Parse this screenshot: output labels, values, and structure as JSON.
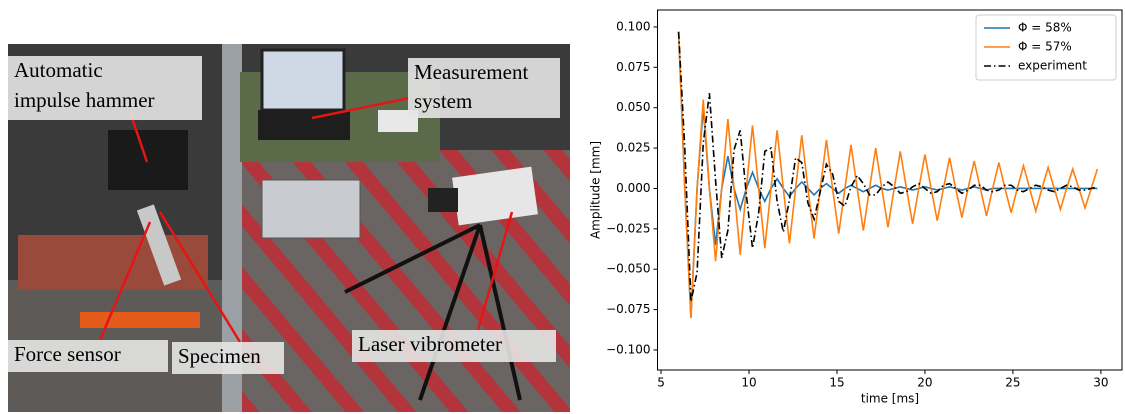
{
  "photo": {
    "labels": [
      {
        "lines": [
          "Automatic",
          "impulse hammer"
        ]
      },
      {
        "lines": [
          "Measurement",
          "system"
        ]
      },
      {
        "lines": [
          "Force sensor"
        ]
      },
      {
        "lines": [
          "Specimen"
        ]
      },
      {
        "lines": [
          "Laser vibrometer"
        ]
      }
    ]
  },
  "chart_data": {
    "type": "line",
    "xlabel": "time [ms]",
    "ylabel": "Amplitude [mm]",
    "xlim": [
      4.8,
      31.2
    ],
    "ylim": [
      -0.1124,
      0.1105
    ],
    "xticks": [
      5,
      10,
      15,
      20,
      25,
      30
    ],
    "yticks": [
      {
        "value": -0.1,
        "label": "−0.100"
      },
      {
        "value": -0.075,
        "label": "−0.075"
      },
      {
        "value": -0.05,
        "label": "−0.050"
      },
      {
        "value": -0.025,
        "label": "−0.025"
      },
      {
        "value": 0,
        "label": "0.000"
      },
      {
        "value": 0.025,
        "label": "0.025"
      },
      {
        "value": 0.05,
        "label": "0.050"
      },
      {
        "value": 0.075,
        "label": "0.075"
      },
      {
        "value": 0.1,
        "label": "0.100"
      }
    ],
    "legend": "upper right",
    "x": [
      6,
      6.35,
      6.7,
      7.05,
      7.4,
      7.75,
      8.1,
      8.45,
      8.8,
      9.15,
      9.5,
      9.85,
      10.2,
      10.55,
      10.9,
      11.25,
      11.6,
      11.95,
      12.3,
      12.65,
      13,
      13.35,
      13.7,
      14.05,
      14.4,
      14.75,
      15.1,
      15.45,
      15.8,
      16.15,
      16.5,
      16.85,
      17.2,
      17.55,
      17.9,
      18.25,
      18.6,
      18.95,
      19.3,
      19.65,
      20,
      20.35,
      20.7,
      21.05,
      21.4,
      21.75,
      22.1,
      22.45,
      22.8,
      23.15,
      23.5,
      23.85,
      24.2,
      24.55,
      24.9,
      25.25,
      25.6,
      25.95,
      26.3,
      26.65,
      27,
      27.35,
      27.7,
      28.05,
      28.4,
      28.75,
      29.1,
      29.45,
      29.8
    ],
    "series": [
      {
        "name": "Φ = 58%",
        "color": "#1f77b4",
        "linestyle": "solid",
        "values": [
          0.097,
          0,
          -0.08,
          0,
          0.05,
          0,
          -0.035,
          0,
          0.02,
          0,
          -0.013,
          0,
          0.01,
          0,
          -0.008,
          0,
          0.006,
          0,
          -0.005,
          0,
          0.004,
          0,
          -0.004,
          0,
          0.003,
          0,
          -0.003,
          0,
          0.002,
          0,
          -0.002,
          0,
          0.002,
          0,
          -0.001,
          0,
          0.001,
          0,
          -0.001,
          0,
          0.001,
          0,
          -0.001,
          0,
          0.001,
          0,
          -0.001,
          0,
          0.001,
          0,
          -0.001,
          0,
          0,
          0,
          0,
          0,
          0,
          0,
          0,
          0,
          0,
          0,
          0,
          0,
          0,
          0,
          0,
          0,
          0
        ]
      },
      {
        "name": "Φ = 57%",
        "color": "#ff7f0e",
        "linestyle": "solid",
        "values": [
          0.097,
          0,
          -0.08,
          0,
          0.055,
          0,
          -0.045,
          0,
          0.043,
          0,
          -0.041,
          0,
          0.039,
          0,
          -0.037,
          0,
          0.036,
          0,
          -0.034,
          0,
          0.033,
          0,
          -0.031,
          0,
          0.03,
          0,
          -0.028,
          0,
          0.027,
          0,
          -0.026,
          0,
          0.025,
          0,
          -0.024,
          0,
          0.023,
          0,
          -0.022,
          0,
          0.021,
          0,
          -0.02,
          0,
          0.019,
          0,
          -0.018,
          0,
          0.017,
          0,
          -0.017,
          0,
          0.016,
          0,
          -0.015,
          0,
          0.014,
          0,
          -0.014,
          0,
          0.013,
          0,
          -0.013,
          0,
          0.012,
          0,
          -0.012,
          0,
          0.012
        ]
      },
      {
        "name": "experiment",
        "color": "#000000",
        "linestyle": "dashdot",
        "values": [
          0.097,
          0.025,
          -0.07,
          -0.052,
          0.028,
          0.059,
          0.005,
          -0.043,
          -0.026,
          0.024,
          0.036,
          -0.004,
          -0.037,
          -0.015,
          0.023,
          0.025,
          -0.008,
          -0.027,
          -0.007,
          0.019,
          0.016,
          -0.009,
          -0.019,
          -0.002,
          0.015,
          0.009,
          -0.008,
          -0.011,
          0.001,
          0.008,
          0.003,
          -0.004,
          -0.004,
          0.001,
          0.004,
          0.001,
          -0.003,
          -0.002,
          0.001,
          0.003,
          0,
          -0.003,
          -0.002,
          0.002,
          0.003,
          0,
          -0.003,
          -0.001,
          0.002,
          0.002,
          -0.001,
          -0.002,
          -0.001,
          0.002,
          0.002,
          -0.001,
          -0.002,
          0,
          0.002,
          0.001,
          -0.001,
          -0.002,
          0,
          0.002,
          0.001,
          -0.001,
          -0.001,
          0,
          0.001
        ]
      }
    ]
  }
}
